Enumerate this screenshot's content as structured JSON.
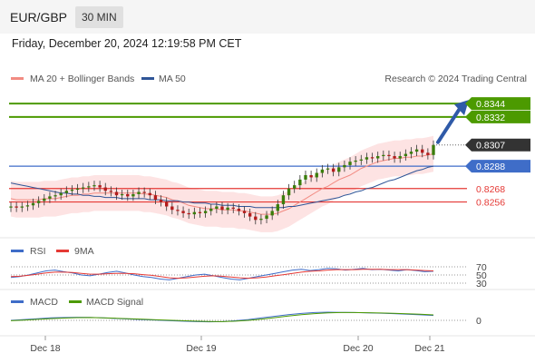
{
  "header": {
    "pair": "EUR/GBP",
    "timeframe": "30 MIN"
  },
  "datetime": "Friday, December 20, 2024 12:19:58 PM CET",
  "legend": {
    "ma20": "MA 20 + Bollinger Bands",
    "ma50": "MA 50",
    "credit": "Research © 2024 Trading Central"
  },
  "rsi_legend": {
    "rsi": "RSI",
    "ma": "9MA"
  },
  "macd_legend": {
    "macd": "MACD",
    "signal": "MACD Signal"
  },
  "colors": {
    "green": "#4c9a00",
    "blue": "#3f6dc8",
    "red": "#e53935",
    "dark": "#333333",
    "ma20": "#f28b82",
    "ma50": "#2f5597",
    "band": "#fde3e3"
  },
  "chart_data": [
    {
      "type": "line",
      "title": "EUR/GBP",
      "ylim": [
        0.8237,
        0.8353
      ],
      "x_labels": [
        "Dec 18",
        "Dec 19",
        "Dec 20",
        "Dec 21"
      ],
      "close": [
        0.8252,
        0.8251,
        0.8252,
        0.8253,
        0.8255,
        0.8257,
        0.8259,
        0.8261,
        0.8262,
        0.8264,
        0.8266,
        0.8267,
        0.8268,
        0.8269,
        0.827,
        0.8271,
        0.8269,
        0.8266,
        0.8265,
        0.8262,
        0.8263,
        0.8261,
        0.8263,
        0.8265,
        0.8264,
        0.8262,
        0.8258,
        0.8256,
        0.8252,
        0.8249,
        0.8248,
        0.8246,
        0.8245,
        0.8247,
        0.8246,
        0.8248,
        0.825,
        0.8252,
        0.8249,
        0.8251,
        0.825,
        0.8248,
        0.8246,
        0.8243,
        0.824,
        0.8241,
        0.8244,
        0.8248,
        0.8254,
        0.8262,
        0.8268,
        0.8271,
        0.8276,
        0.828,
        0.8278,
        0.8282,
        0.8285,
        0.8286,
        0.8283,
        0.8287,
        0.8289,
        0.8292,
        0.8293,
        0.8294,
        0.8296,
        0.8295,
        0.8297,
        0.8298,
        0.8297,
        0.8295,
        0.8297,
        0.8299,
        0.8301,
        0.8303,
        0.83,
        0.8298,
        0.8307
      ],
      "ma20": [
        0.8259,
        0.8258,
        0.8258,
        0.8258,
        0.8258,
        0.8258,
        0.8259,
        0.8259,
        0.8259,
        0.826,
        0.8261,
        0.8262,
        0.8262,
        0.8263,
        0.8263,
        0.8264,
        0.8264,
        0.8264,
        0.8264,
        0.8264,
        0.8264,
        0.8264,
        0.8264,
        0.8264,
        0.8263,
        0.8263,
        0.8262,
        0.8261,
        0.826,
        0.8258,
        0.8257,
        0.8255,
        0.8253,
        0.8252,
        0.8251,
        0.825,
        0.825,
        0.825,
        0.8249,
        0.8249,
        0.8249,
        0.8248,
        0.8248,
        0.8247,
        0.8246,
        0.8245,
        0.8245,
        0.8245,
        0.8246,
        0.8248,
        0.825,
        0.8253,
        0.8256,
        0.8259,
        0.8262,
        0.8265,
        0.8268,
        0.827,
        0.8273,
        0.8276,
        0.8278,
        0.828,
        0.8283,
        0.8286,
        0.8288,
        0.829,
        0.8292,
        0.8293,
        0.8294,
        0.8295,
        0.8295,
        0.8296,
        0.8296,
        0.8297,
        0.8297,
        0.8298,
        0.8299
      ],
      "ma50": [
        0.8273,
        0.8272,
        0.8271,
        0.827,
        0.8269,
        0.8268,
        0.8267,
        0.8266,
        0.8265,
        0.8264,
        0.8264,
        0.8263,
        0.8263,
        0.8262,
        0.8262,
        0.8261,
        0.8261,
        0.826,
        0.826,
        0.826,
        0.8259,
        0.8259,
        0.8259,
        0.8259,
        0.8259,
        0.8258,
        0.8258,
        0.8258,
        0.8257,
        0.8257,
        0.8257,
        0.8256,
        0.8256,
        0.8255,
        0.8255,
        0.8255,
        0.8254,
        0.8254,
        0.8253,
        0.8253,
        0.8253,
        0.8252,
        0.8252,
        0.8252,
        0.8251,
        0.8251,
        0.8251,
        0.8251,
        0.8251,
        0.8251,
        0.8252,
        0.8252,
        0.8253,
        0.8254,
        0.8255,
        0.8256,
        0.8257,
        0.8258,
        0.8259,
        0.826,
        0.8262,
        0.8263,
        0.8265,
        0.8266,
        0.8268,
        0.8269,
        0.8271,
        0.8273,
        0.8275,
        0.8276,
        0.8278,
        0.828,
        0.8282,
        0.8284,
        0.8285,
        0.8287,
        0.8288
      ],
      "bollinger_width": 0.0016,
      "levels": [
        {
          "value": 0.8344,
          "label": "0.8344",
          "color": "#4c9a00",
          "line": true,
          "badge": true
        },
        {
          "value": 0.8332,
          "label": "0.8332",
          "color": "#4c9a00",
          "line": true,
          "badge": true
        },
        {
          "value": 0.8307,
          "label": "0.8307",
          "color": "#333333",
          "line": false,
          "badge": true
        },
        {
          "value": 0.8288,
          "label": "0.8288",
          "color": "#3f6dc8",
          "line": true,
          "badge": true
        },
        {
          "value": 0.8268,
          "label": "0.8268",
          "color": "#e53935",
          "line": true,
          "badge": false
        },
        {
          "value": 0.8256,
          "label": "0.8256",
          "color": "#e53935",
          "line": true,
          "badge": false
        }
      ],
      "target_arrow": {
        "from": 0.8307,
        "to": 0.8344
      }
    },
    {
      "type": "line",
      "title": "RSI",
      "ylim": [
        30,
        70
      ],
      "tick_labels": [
        "70",
        "50",
        "30"
      ],
      "series": [
        {
          "name": "RSI",
          "values": [
            44,
            46,
            50,
            55,
            60,
            62,
            58,
            55,
            50,
            48,
            52,
            56,
            59,
            55,
            50,
            46,
            44,
            40,
            38,
            42,
            46,
            50,
            52,
            48,
            44,
            40,
            38,
            42,
            46,
            50,
            54,
            58,
            62,
            64,
            61,
            63,
            66,
            65,
            62,
            64,
            66,
            63,
            64,
            62,
            60,
            63,
            61,
            58,
            59
          ]
        },
        {
          "name": "9MA",
          "values": [
            46,
            47,
            49,
            52,
            55,
            57,
            57,
            56,
            54,
            52,
            52,
            53,
            54,
            54,
            53,
            51,
            49,
            46,
            43,
            42,
            43,
            45,
            47,
            48,
            47,
            45,
            43,
            42,
            43,
            45,
            48,
            51,
            54,
            57,
            59,
            60,
            62,
            63,
            63,
            63,
            64,
            64,
            64,
            63,
            63,
            63,
            62,
            61,
            60
          ]
        }
      ]
    },
    {
      "type": "line",
      "title": "MACD",
      "ylim": [
        -1,
        1
      ],
      "tick_labels": [
        "0"
      ],
      "series": [
        {
          "name": "MACD",
          "values": [
            0.0,
            0.1,
            0.2,
            0.3,
            0.35,
            0.38,
            0.36,
            0.3,
            0.22,
            0.15,
            0.08,
            0.02,
            -0.04,
            -0.1,
            -0.15,
            -0.18,
            -0.15,
            -0.05,
            0.1,
            0.3,
            0.5,
            0.7,
            0.85,
            0.95,
            1.0,
            0.98,
            0.95,
            0.92,
            0.88,
            0.82,
            0.75,
            0.68,
            0.6
          ]
        },
        {
          "name": "MACD Signal",
          "values": [
            -0.05,
            0.03,
            0.12,
            0.21,
            0.28,
            0.33,
            0.34,
            0.31,
            0.26,
            0.2,
            0.13,
            0.07,
            0.01,
            -0.05,
            -0.1,
            -0.14,
            -0.15,
            -0.1,
            0.0,
            0.15,
            0.33,
            0.52,
            0.69,
            0.82,
            0.91,
            0.95,
            0.95,
            0.93,
            0.9,
            0.86,
            0.8,
            0.74,
            0.67
          ]
        }
      ]
    }
  ]
}
